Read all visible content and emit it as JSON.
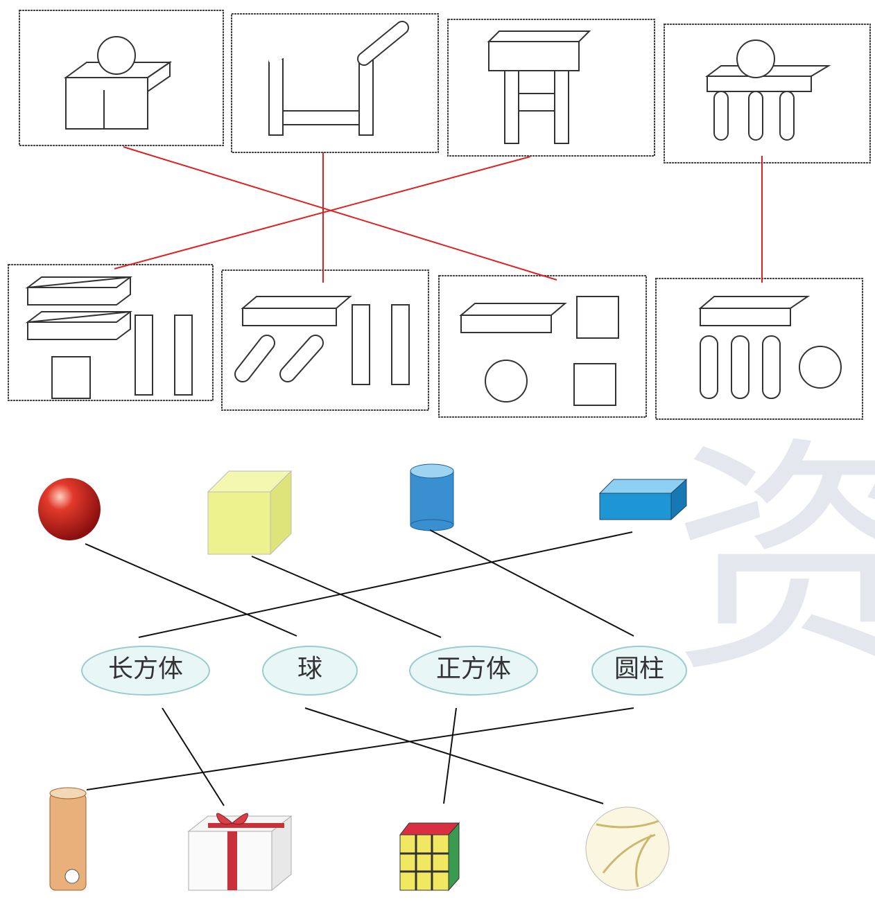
{
  "labels": [
    "长方体",
    "球",
    "正方体",
    "圆柱"
  ],
  "watermark": "资"
}
